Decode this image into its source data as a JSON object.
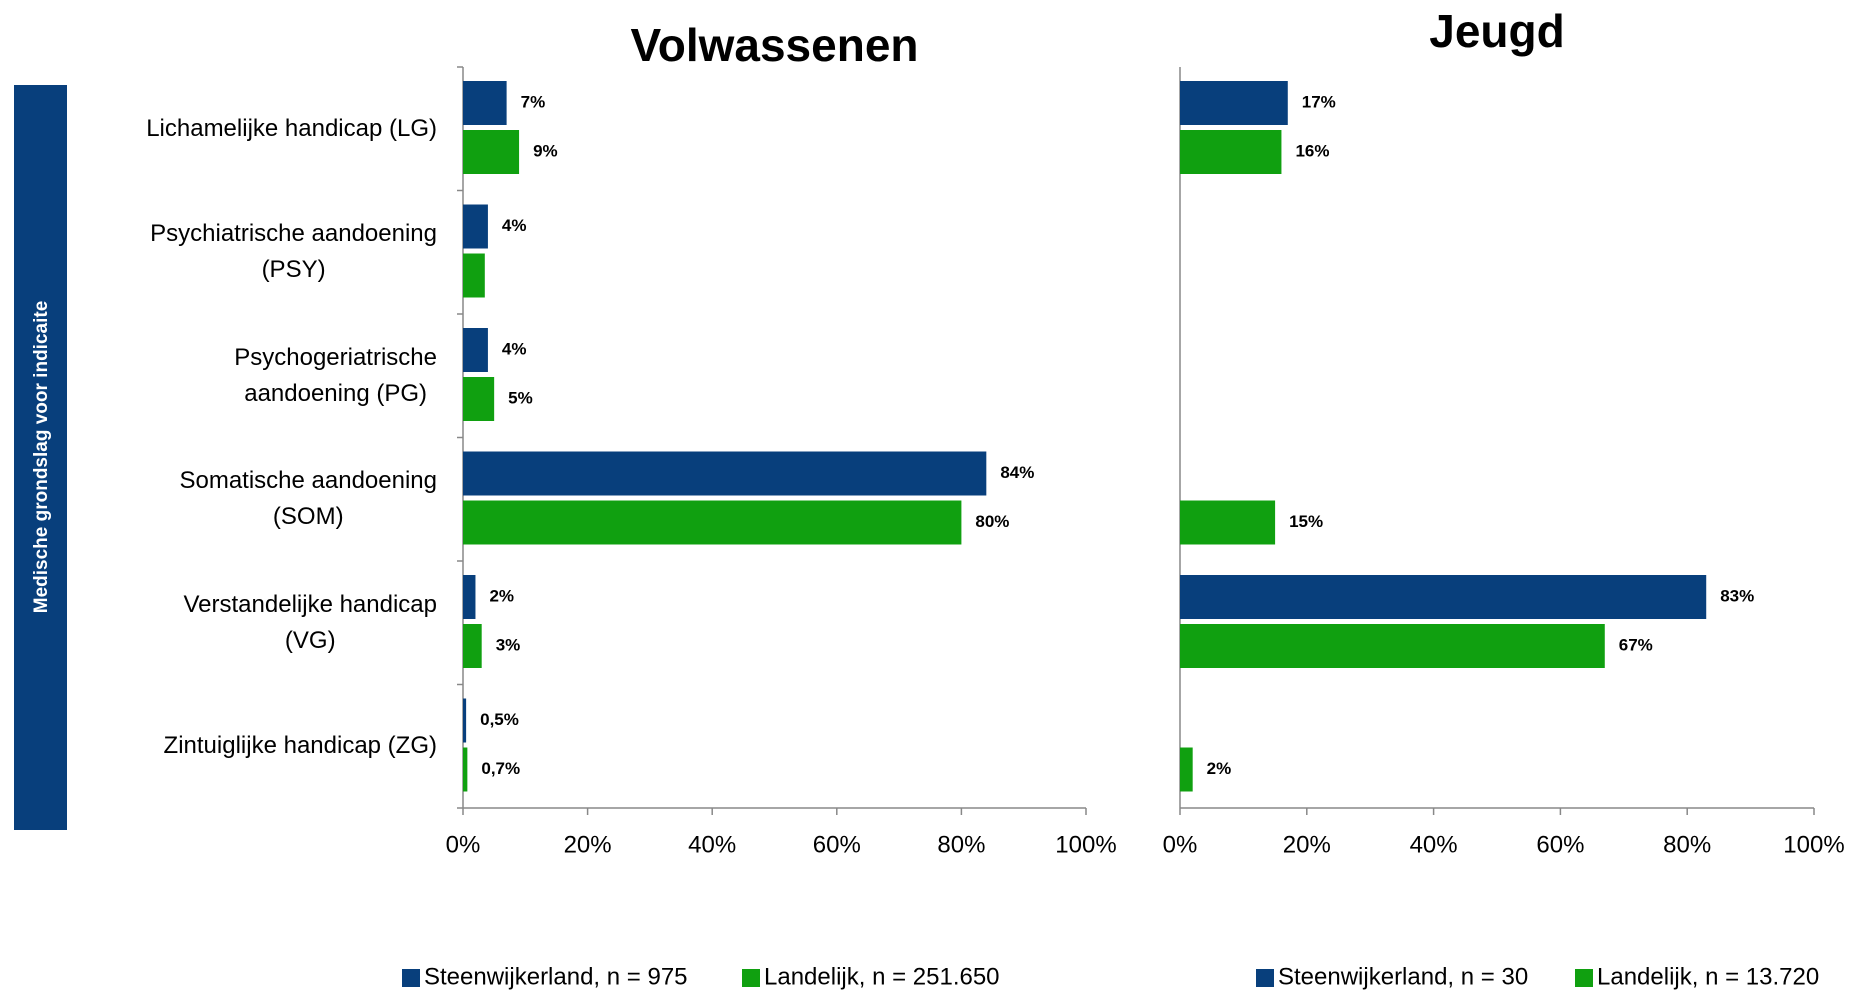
{
  "chart_data": [
    {
      "type": "bar",
      "orientation": "horizontal",
      "title": "Volwassenen",
      "y_label": "Medische grondslag voor indicaite",
      "categories": [
        "Lichamelijke handicap (LG)",
        "Psychiatrische aandoening\n(PSY)",
        "Psychogeriatrische\naandoening (PG)",
        "Somatische aandoening\n(SOM)",
        "Verstandelijke handicap\n(VG)",
        "Zintuiglijke handicap (ZG)"
      ],
      "series": [
        {
          "name": "Steenwijkerland, n = 975",
          "color": "#083f7c",
          "values": [
            7,
            4,
            4,
            84,
            2,
            0.5
          ],
          "value_labels": [
            "7%",
            "4%",
            "4%",
            "84%",
            "2%",
            "0,5%"
          ]
        },
        {
          "name": "Landelijk, n = 251.650",
          "color": "#10a010",
          "values": [
            9,
            3.5,
            5,
            80,
            3,
            0.7
          ],
          "value_labels": [
            "9%",
            null,
            "5%",
            "80%",
            "3%",
            "0,7%"
          ]
        }
      ],
      "xlim": [
        0,
        100
      ],
      "xticks": [
        {
          "value": 0,
          "label": "0%"
        },
        {
          "value": 20,
          "label": "20%"
        },
        {
          "value": 40,
          "label": "40%"
        },
        {
          "value": 60,
          "label": "60%"
        },
        {
          "value": 80,
          "label": "80%"
        },
        {
          "value": 100,
          "label": "100%"
        }
      ],
      "grid": false
    },
    {
      "type": "bar",
      "orientation": "horizontal",
      "title": "Jeugd",
      "series": [
        {
          "name": "Steenwijkerland, n = 30",
          "color": "#083f7c",
          "values": [
            17,
            null,
            null,
            null,
            83,
            null
          ],
          "value_labels": [
            "17%",
            null,
            null,
            null,
            "83%",
            null
          ]
        },
        {
          "name": "Landelijk, n = 13.720",
          "color": "#10a010",
          "values": [
            16,
            null,
            null,
            15,
            67,
            2
          ],
          "value_labels": [
            "16%",
            null,
            null,
            "15%",
            "67%",
            "2%"
          ]
        }
      ],
      "xlim": [
        0,
        100
      ],
      "xticks": [
        {
          "value": 0,
          "label": "0%"
        },
        {
          "value": 20,
          "label": "20%"
        },
        {
          "value": 40,
          "label": "40%"
        },
        {
          "value": 60,
          "label": "60%"
        },
        {
          "value": 80,
          "label": "80%"
        },
        {
          "value": 100,
          "label": "100%"
        }
      ],
      "grid": false
    }
  ]
}
